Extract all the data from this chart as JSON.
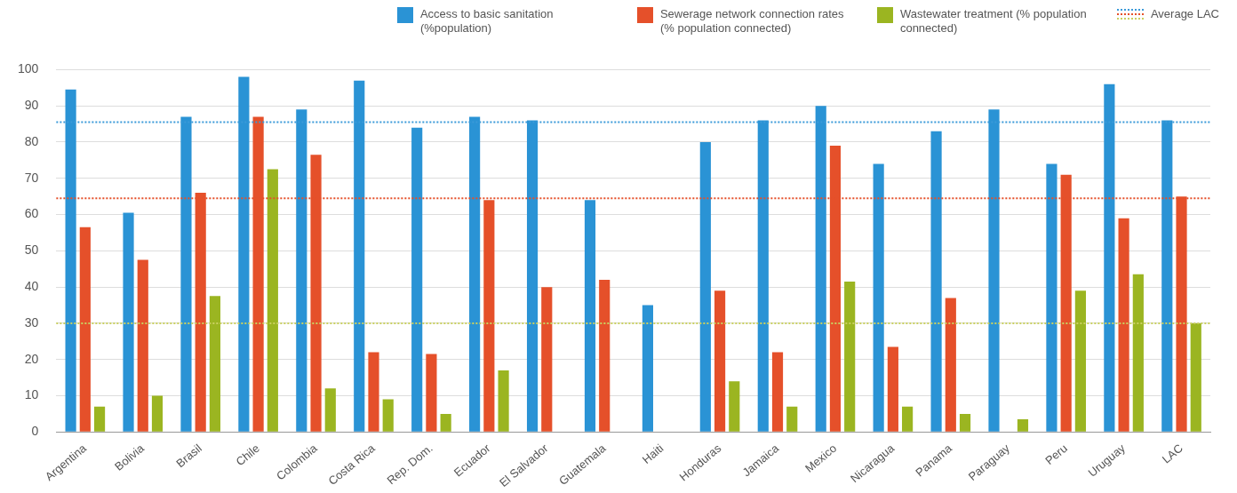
{
  "chart_data": {
    "type": "bar",
    "categories": [
      "Argentina",
      "Bolivia",
      "Brasil",
      "Chile",
      "Colombia",
      "Costa Rica",
      "Rep. Dom.",
      "Ecuador",
      "El Salvador",
      "Guatemala",
      "Haiti",
      "Honduras",
      "Jamaica",
      "Mexico",
      "Nicaragua",
      "Panama",
      "Paraguay",
      "Peru",
      "Uruguay",
      "LAC"
    ],
    "series": [
      {
        "name": "Access to basic sanitation (%population)",
        "color": "#2a93d5",
        "values": [
          94.5,
          60.5,
          87,
          98,
          89,
          97,
          84,
          87,
          86,
          64,
          35,
          80,
          86,
          90,
          74,
          83,
          89,
          74,
          96,
          86
        ]
      },
      {
        "name": "Sewerage network connection rates (% population connected)",
        "color": "#e5502a",
        "values": [
          56.5,
          47.5,
          66,
          87,
          76.5,
          22,
          21.5,
          64,
          40,
          42,
          null,
          39,
          22,
          79,
          23.5,
          37,
          null,
          71,
          59,
          65
        ]
      },
      {
        "name": "Wastewater treatment (% population connected)",
        "color": "#9bb521",
        "values": [
          7,
          10,
          37.5,
          72.5,
          12,
          9,
          5,
          17,
          null,
          null,
          null,
          14,
          7,
          41.5,
          7,
          5,
          3.5,
          39,
          43.5,
          30
        ]
      }
    ],
    "ylim": [
      0,
      100
    ],
    "yticks": [
      0,
      10,
      20,
      30,
      40,
      50,
      60,
      70,
      80,
      90,
      100
    ],
    "grid": "y",
    "legend": "top",
    "ref_lines": [
      {
        "axis": "y",
        "value": 85.5,
        "label": "Average LAC",
        "color": "#3a9ad9",
        "line_style": "dotted"
      },
      {
        "axis": "y",
        "value": 64.5,
        "color": "#e5502a",
        "line_style": "dotted"
      },
      {
        "axis": "y",
        "value": 30,
        "color": "#c9d060",
        "line_style": "dotted"
      }
    ]
  }
}
